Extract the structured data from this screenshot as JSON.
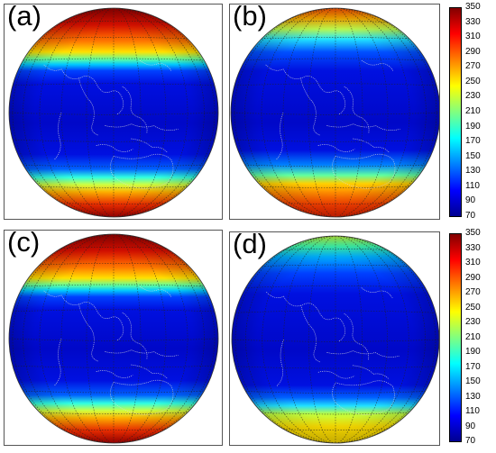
{
  "panels": [
    {
      "label": "(a)",
      "pattern": "north-strong"
    },
    {
      "label": "(b)",
      "pattern": "south-strong"
    },
    {
      "label": "(c)",
      "pattern": "north-strong"
    },
    {
      "label": "(d)",
      "pattern": "south-moderate"
    }
  ],
  "colorbar": {
    "min": 70,
    "max": 350,
    "ticks": [
      "350",
      "330",
      "310",
      "290",
      "270",
      "250",
      "230",
      "210",
      "190",
      "170",
      "150",
      "130",
      "110",
      "90",
      "70"
    ],
    "colors": [
      "#00008f",
      "#0000ff",
      "#0080ff",
      "#00ffff",
      "#80ff80",
      "#ffff00",
      "#ff8000",
      "#ff0000",
      "#800000"
    ]
  },
  "map": {
    "background_color": "#0a1fd0",
    "gridline_color": "#222222",
    "coastline_color": "#dddddd"
  }
}
